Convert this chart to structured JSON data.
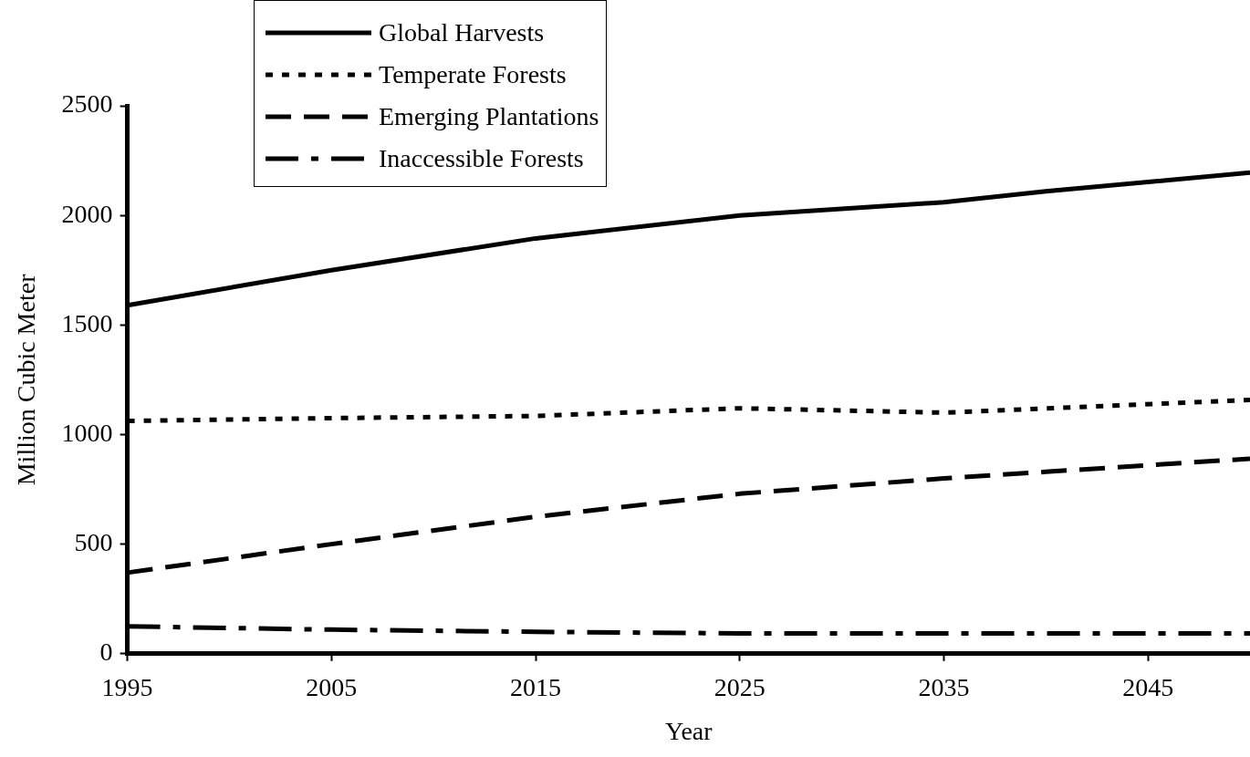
{
  "chart_data": {
    "type": "line",
    "xlabel": "Year",
    "ylabel": "Million Cubic Meter",
    "xlim": [
      1995,
      2050
    ],
    "xticks": [
      1995,
      2005,
      2015,
      2025,
      2035,
      2045
    ],
    "ylim": [
      0,
      2500
    ],
    "yticks": [
      0,
      500,
      1000,
      1500,
      2000,
      2500
    ],
    "grid": false,
    "legend": "top left",
    "marker": "none",
    "series": [
      {
        "name": "Global Harvests",
        "color": "#000000",
        "line_style": "solid",
        "x": [
          1995,
          2005,
          2015,
          2025,
          2035,
          2040,
          2050
        ],
        "values": [
          1590,
          1750,
          1895,
          2000,
          2060,
          2110,
          2195
        ]
      },
      {
        "name": "Temperate Forests",
        "color": "#000000",
        "line_style": "dotted",
        "x": [
          1995,
          2005,
          2015,
          2025,
          2035,
          2050
        ],
        "values": [
          1062,
          1075,
          1085,
          1120,
          1100,
          1158
        ]
      },
      {
        "name": "Emerging Plantations",
        "color": "#000000",
        "line_style": "dashed",
        "x": [
          1995,
          2005,
          2015,
          2025,
          2035,
          2040,
          2050
        ],
        "values": [
          370,
          500,
          625,
          730,
          800,
          830,
          890
        ]
      },
      {
        "name": "Inaccessible Forests",
        "color": "#000000",
        "line_style": "dashdot",
        "x": [
          1995,
          2005,
          2015,
          2025,
          2050
        ],
        "values": [
          125,
          110,
          100,
          93,
          93
        ]
      }
    ]
  }
}
